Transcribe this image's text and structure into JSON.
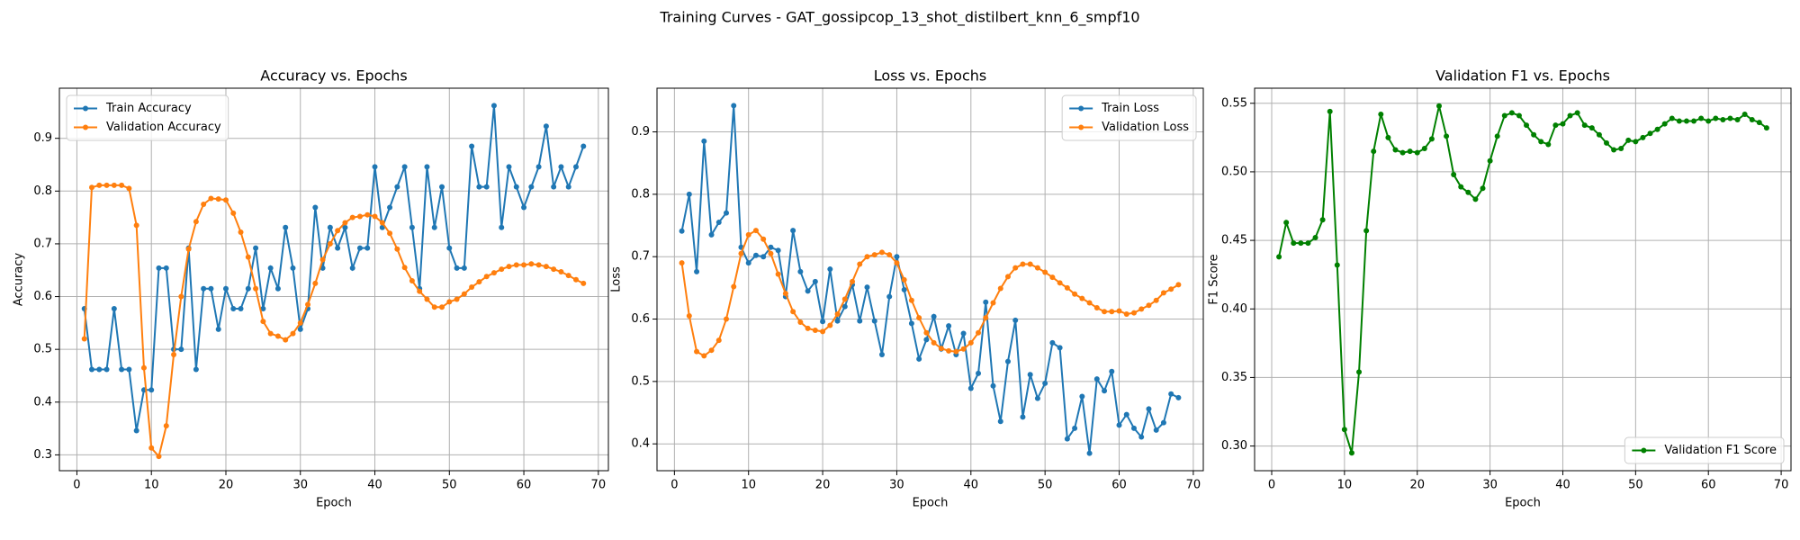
{
  "title": "Training Curves - GAT_gossipcop_13_shot_distilbert_knn_6_smpf10",
  "chart_data": [
    {
      "type": "line",
      "title": "Accuracy vs. Epochs",
      "x_label": "Epoch",
      "y_label": "Accuracy",
      "x": [
        1,
        2,
        3,
        4,
        5,
        6,
        7,
        8,
        9,
        10,
        11,
        12,
        13,
        14,
        15,
        16,
        17,
        18,
        19,
        20,
        21,
        22,
        23,
        24,
        25,
        26,
        27,
        28,
        29,
        30,
        31,
        32,
        33,
        34,
        35,
        36,
        37,
        38,
        39,
        40,
        41,
        42,
        43,
        44,
        45,
        46,
        47,
        48,
        49,
        50,
        51,
        52,
        53,
        54,
        55,
        56,
        57,
        58,
        59,
        60,
        61,
        62,
        63,
        64,
        65,
        66,
        67,
        68
      ],
      "series": [
        {
          "name": "Train Accuracy",
          "color": "#1f77b4",
          "values": [
            0.577,
            0.462,
            0.462,
            0.462,
            0.577,
            0.462,
            0.462,
            0.346,
            0.423,
            0.423,
            0.654,
            0.654,
            0.5,
            0.5,
            0.692,
            0.462,
            0.615,
            0.615,
            0.538,
            0.615,
            0.577,
            0.577,
            0.615,
            0.692,
            0.577,
            0.654,
            0.615,
            0.731,
            0.654,
            0.538,
            0.577,
            0.769,
            0.654,
            0.731,
            0.692,
            0.731,
            0.654,
            0.692,
            0.692,
            0.846,
            0.731,
            0.769,
            0.808,
            0.846,
            0.731,
            0.615,
            0.846,
            0.731,
            0.808,
            0.692,
            0.654,
            0.654,
            0.885,
            0.808,
            0.808,
            0.962,
            0.731,
            0.846,
            0.808,
            0.769,
            0.808,
            0.846,
            0.923,
            0.808,
            0.846,
            0.808,
            0.846,
            0.885
          ]
        },
        {
          "name": "Validation Accuracy",
          "color": "#ff7f0e",
          "values": [
            0.52,
            0.807,
            0.811,
            0.811,
            0.811,
            0.811,
            0.805,
            0.735,
            0.465,
            0.313,
            0.297,
            0.355,
            0.49,
            0.6,
            0.69,
            0.742,
            0.775,
            0.786,
            0.785,
            0.783,
            0.758,
            0.722,
            0.675,
            0.615,
            0.553,
            0.53,
            0.525,
            0.518,
            0.53,
            0.55,
            0.585,
            0.625,
            0.67,
            0.7,
            0.725,
            0.74,
            0.75,
            0.752,
            0.755,
            0.752,
            0.74,
            0.72,
            0.69,
            0.655,
            0.63,
            0.61,
            0.595,
            0.58,
            0.58,
            0.59,
            0.595,
            0.605,
            0.618,
            0.628,
            0.638,
            0.645,
            0.652,
            0.657,
            0.66,
            0.66,
            0.662,
            0.66,
            0.657,
            0.652,
            0.647,
            0.64,
            0.632,
            0.625
          ]
        }
      ],
      "xlim": [
        -2.35,
        71.35
      ],
      "xticks": [
        0,
        10,
        20,
        30,
        40,
        50,
        60,
        70
      ],
      "ylim": [
        0.27,
        0.995
      ],
      "yticks": [
        0.3,
        0.4,
        0.5,
        0.6,
        0.7,
        0.8,
        0.9
      ],
      "grid": true,
      "legend": "upper left"
    },
    {
      "type": "line",
      "title": "Loss vs. Epochs",
      "x_label": "Epoch",
      "y_label": "Loss",
      "x": [
        1,
        2,
        3,
        4,
        5,
        6,
        7,
        8,
        9,
        10,
        11,
        12,
        13,
        14,
        15,
        16,
        17,
        18,
        19,
        20,
        21,
        22,
        23,
        24,
        25,
        26,
        27,
        28,
        29,
        30,
        31,
        32,
        33,
        34,
        35,
        36,
        37,
        38,
        39,
        40,
        41,
        42,
        43,
        44,
        45,
        46,
        47,
        48,
        49,
        50,
        51,
        52,
        53,
        54,
        55,
        56,
        57,
        58,
        59,
        60,
        61,
        62,
        63,
        64,
        65,
        66,
        67,
        68
      ],
      "series": [
        {
          "name": "Train Loss",
          "color": "#1f77b4",
          "values": [
            0.741,
            0.8,
            0.676,
            0.885,
            0.735,
            0.755,
            0.77,
            0.942,
            0.715,
            0.69,
            0.702,
            0.7,
            0.715,
            0.71,
            0.636,
            0.742,
            0.676,
            0.645,
            0.66,
            0.596,
            0.68,
            0.597,
            0.62,
            0.655,
            0.597,
            0.651,
            0.597,
            0.543,
            0.636,
            0.7,
            0.647,
            0.593,
            0.536,
            0.567,
            0.604,
            0.552,
            0.589,
            0.543,
            0.577,
            0.489,
            0.513,
            0.627,
            0.493,
            0.436,
            0.532,
            0.598,
            0.443,
            0.511,
            0.473,
            0.497,
            0.562,
            0.554,
            0.408,
            0.425,
            0.476,
            0.385,
            0.504,
            0.485,
            0.516,
            0.43,
            0.447,
            0.425,
            0.411,
            0.456,
            0.422,
            0.434,
            0.48,
            0.474
          ]
        },
        {
          "name": "Validation Loss",
          "color": "#ff7f0e",
          "values": [
            0.69,
            0.605,
            0.548,
            0.541,
            0.55,
            0.566,
            0.6,
            0.652,
            0.705,
            0.735,
            0.742,
            0.728,
            0.705,
            0.672,
            0.641,
            0.612,
            0.595,
            0.585,
            0.582,
            0.58,
            0.59,
            0.608,
            0.632,
            0.66,
            0.688,
            0.7,
            0.703,
            0.707,
            0.703,
            0.69,
            0.663,
            0.63,
            0.602,
            0.578,
            0.562,
            0.553,
            0.549,
            0.548,
            0.552,
            0.562,
            0.578,
            0.602,
            0.626,
            0.649,
            0.668,
            0.682,
            0.688,
            0.688,
            0.682,
            0.675,
            0.667,
            0.658,
            0.65,
            0.64,
            0.633,
            0.626,
            0.618,
            0.612,
            0.612,
            0.613,
            0.608,
            0.61,
            0.616,
            0.622,
            0.63,
            0.642,
            0.648,
            0.655
          ]
        }
      ],
      "xlim": [
        -2.35,
        71.35
      ],
      "xticks": [
        0,
        10,
        20,
        30,
        40,
        50,
        60,
        70
      ],
      "ylim": [
        0.357,
        0.97
      ],
      "yticks": [
        0.4,
        0.5,
        0.6,
        0.7,
        0.8,
        0.9
      ],
      "grid": true,
      "legend": "upper right"
    },
    {
      "type": "line",
      "title": "Validation F1 vs. Epochs",
      "x_label": "Epoch",
      "y_label": "F1 Score",
      "x": [
        1,
        2,
        3,
        4,
        5,
        6,
        7,
        8,
        9,
        10,
        11,
        12,
        13,
        14,
        15,
        16,
        17,
        18,
        19,
        20,
        21,
        22,
        23,
        24,
        25,
        26,
        27,
        28,
        29,
        30,
        31,
        32,
        33,
        34,
        35,
        36,
        37,
        38,
        39,
        40,
        41,
        42,
        43,
        44,
        45,
        46,
        47,
        48,
        49,
        50,
        51,
        52,
        53,
        54,
        55,
        56,
        57,
        58,
        59,
        60,
        61,
        62,
        63,
        64,
        65,
        66,
        67,
        68
      ],
      "series": [
        {
          "name": "Validation F1 Score",
          "color": "#008000",
          "values": [
            0.438,
            0.463,
            0.448,
            0.448,
            0.448,
            0.452,
            0.465,
            0.544,
            0.432,
            0.312,
            0.295,
            0.354,
            0.457,
            0.515,
            0.542,
            0.525,
            0.516,
            0.514,
            0.515,
            0.514,
            0.517,
            0.524,
            0.548,
            0.526,
            0.498,
            0.489,
            0.485,
            0.48,
            0.488,
            0.508,
            0.526,
            0.541,
            0.543,
            0.541,
            0.534,
            0.527,
            0.522,
            0.52,
            0.534,
            0.535,
            0.541,
            0.543,
            0.534,
            0.532,
            0.527,
            0.521,
            0.516,
            0.517,
            0.523,
            0.522,
            0.525,
            0.528,
            0.531,
            0.535,
            0.539,
            0.537,
            0.537,
            0.537,
            0.539,
            0.537,
            0.539,
            0.538,
            0.539,
            0.538,
            0.542,
            0.538,
            0.536,
            0.532
          ]
        }
      ],
      "xlim": [
        -2.35,
        71.35
      ],
      "xticks": [
        0,
        10,
        20,
        30,
        40,
        50,
        60,
        70
      ],
      "ylim": [
        0.282,
        0.561
      ],
      "yticks": [
        {
          "value": 0.3,
          "label": "0.30"
        },
        {
          "value": 0.35,
          "label": "0.35"
        },
        {
          "value": 0.4,
          "label": "0.40"
        },
        {
          "value": 0.45,
          "label": "0.45"
        },
        {
          "value": 0.5,
          "label": "0.50"
        },
        {
          "value": 0.55,
          "label": "0.55"
        }
      ],
      "grid": true,
      "legend": "lower right"
    }
  ]
}
